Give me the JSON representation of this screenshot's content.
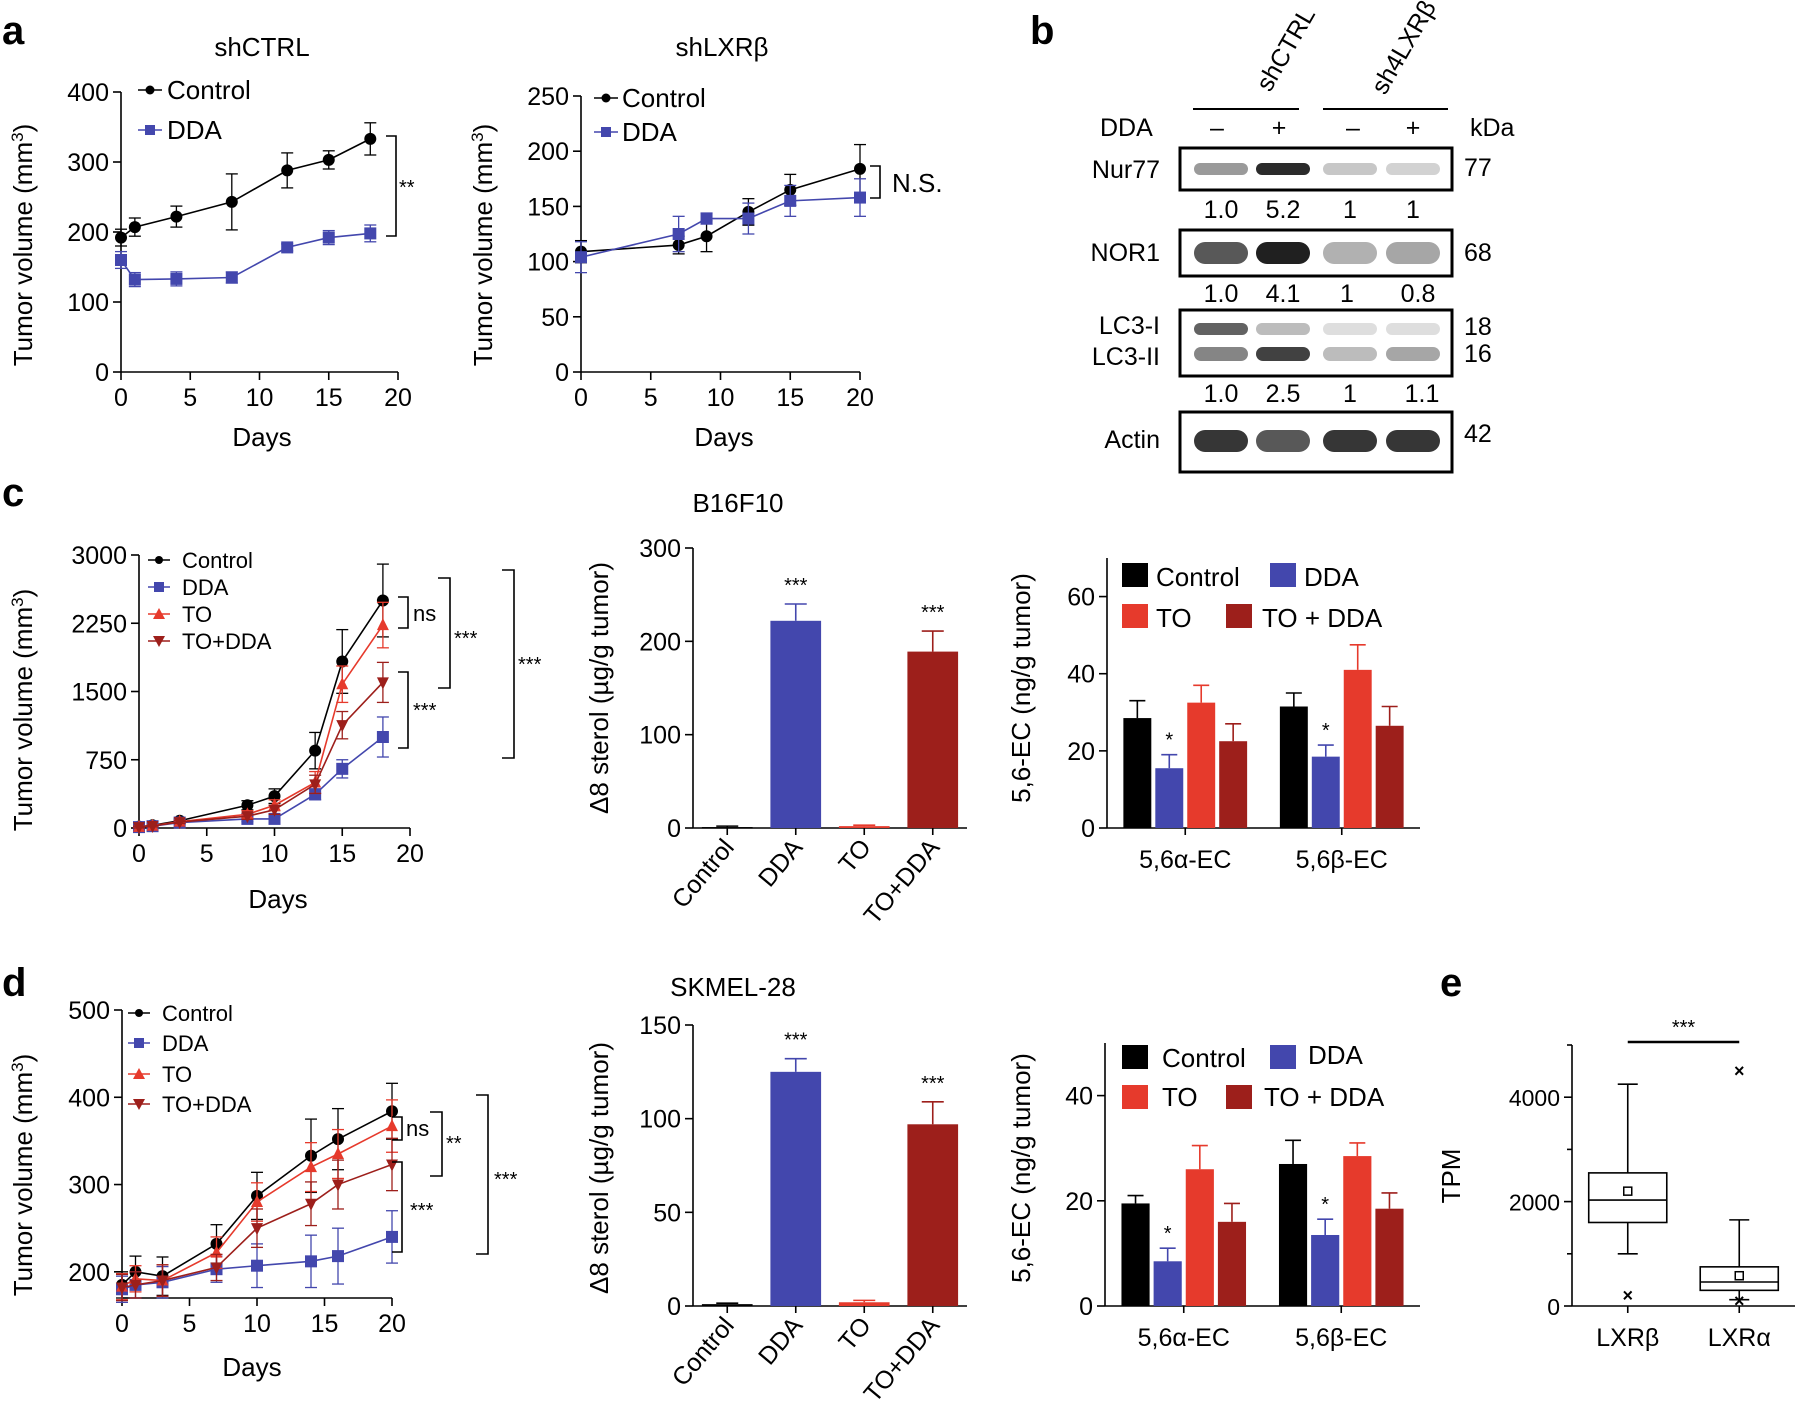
{
  "panel_labels": {
    "a": "a",
    "b": "b",
    "c": "c",
    "d": "d",
    "e": "e"
  },
  "colors": {
    "control": "#000000",
    "dda": "#4347ad",
    "to": "#e63a2c",
    "todda": "#9d1f1b",
    "band": "#202020"
  },
  "chart_data": [
    {
      "id": "a1",
      "type": "line",
      "title": "shCTRL",
      "xlabel": "Days",
      "ylabel": "Tumor volume (mm3)",
      "xlim": [
        0,
        20
      ],
      "ylim": [
        0,
        400
      ],
      "xticks": [
        0,
        5,
        10,
        15,
        20
      ],
      "yticks": [
        0,
        100,
        200,
        300,
        400
      ],
      "series": [
        {
          "name": "Control",
          "color": "#000000",
          "marker": "circle",
          "x": [
            0,
            1,
            4,
            8,
            12,
            15,
            18
          ],
          "y": [
            192,
            207,
            222,
            243,
            288,
            303,
            333
          ],
          "err": [
            12,
            13,
            15,
            40,
            25,
            13,
            23
          ]
        },
        {
          "name": "DDA",
          "color": "#4347ad",
          "marker": "square",
          "x": [
            0,
            1,
            4,
            8,
            12,
            15,
            18
          ],
          "y": [
            160,
            132,
            133,
            135,
            178,
            192,
            198
          ],
          "err": [
            12,
            10,
            10,
            8,
            5,
            10,
            12
          ]
        }
      ],
      "annotations": [
        {
          "text": "**",
          "pos": "between-ends"
        }
      ]
    },
    {
      "id": "a2",
      "type": "line",
      "title": "shLXRβ",
      "xlabel": "Days",
      "ylabel": "Tumor volume (mm3)",
      "xlim": [
        0,
        20
      ],
      "ylim": [
        0,
        250
      ],
      "xticks": [
        0,
        5,
        10,
        15,
        20
      ],
      "yticks": [
        0,
        50,
        100,
        150,
        200,
        250
      ],
      "series": [
        {
          "name": "Control",
          "color": "#000000",
          "marker": "circle",
          "x": [
            0,
            7,
            9,
            12,
            15,
            20
          ],
          "y": [
            109,
            115,
            123,
            145,
            165,
            184
          ],
          "err": [
            10,
            8,
            14,
            12,
            14,
            22
          ]
        },
        {
          "name": "DDA",
          "color": "#4347ad",
          "marker": "square",
          "x": [
            0,
            7,
            9,
            12,
            15,
            20
          ],
          "y": [
            104,
            125,
            139,
            139,
            155,
            158
          ],
          "err": [
            14,
            16,
            5,
            14,
            14,
            17
          ]
        }
      ],
      "annotations": [
        {
          "text": "N.S.",
          "pos": "between-ends"
        }
      ]
    },
    {
      "id": "c1",
      "type": "line",
      "xlabel": "Days",
      "ylabel": "Tumor volume (mm3)",
      "xlim": [
        0,
        20
      ],
      "ylim": [
        0,
        3000
      ],
      "xticks": [
        0,
        5,
        10,
        15,
        20
      ],
      "yticks": [
        0,
        750,
        1500,
        2250,
        3000
      ],
      "series": [
        {
          "name": "Control",
          "color": "#000000",
          "marker": "circle",
          "x": [
            0,
            1,
            3,
            8,
            10,
            13,
            15,
            18
          ],
          "y": [
            15,
            30,
            80,
            250,
            350,
            850,
            1830,
            2500
          ],
          "err": [
            10,
            10,
            20,
            50,
            80,
            200,
            350,
            400
          ]
        },
        {
          "name": "DDA",
          "color": "#4347ad",
          "marker": "square",
          "x": [
            0,
            1,
            3,
            8,
            10,
            13,
            15,
            18
          ],
          "y": [
            10,
            20,
            60,
            100,
            100,
            370,
            650,
            1000
          ],
          "err": [
            10,
            10,
            15,
            30,
            30,
            60,
            100,
            220
          ]
        },
        {
          "name": "TO",
          "color": "#e63a2c",
          "marker": "triangle-up",
          "x": [
            0,
            1,
            3,
            8,
            10,
            13,
            15,
            18
          ],
          "y": [
            12,
            25,
            70,
            150,
            250,
            500,
            1580,
            2230
          ],
          "err": [
            10,
            10,
            15,
            40,
            60,
            120,
            200,
            250
          ]
        },
        {
          "name": "TO+DDA",
          "color": "#9d1f1b",
          "marker": "triangle-down",
          "x": [
            0,
            1,
            3,
            8,
            10,
            13,
            15,
            18
          ],
          "y": [
            10,
            22,
            65,
            130,
            200,
            480,
            1130,
            1600
          ],
          "err": [
            10,
            10,
            15,
            35,
            50,
            100,
            150,
            220
          ]
        }
      ],
      "annotations": [
        {
          "text": "ns"
        },
        {
          "text": "***"
        },
        {
          "text": "***"
        },
        {
          "text": "***"
        }
      ]
    },
    {
      "id": "c2",
      "type": "bar",
      "title": "B16F10",
      "ylabel": "Δ8 sterol (µg/g tumor)",
      "categories": [
        "Control",
        "DDA",
        "TO",
        "TO+DDA"
      ],
      "values": [
        1,
        222,
        2,
        189
      ],
      "err": [
        1,
        18,
        1,
        22
      ],
      "colors": [
        "#000000",
        "#4347ad",
        "#e63a2c",
        "#9d1f1b"
      ],
      "ylim": [
        0,
        300
      ],
      "yticks": [
        0,
        100,
        200,
        300
      ],
      "annotations": [
        {
          "category": "DDA",
          "text": "***"
        },
        {
          "category": "TO+DDA",
          "text": "***"
        }
      ]
    },
    {
      "id": "c3",
      "type": "bar",
      "ylabel": "5,6-EC (ng/g tumor)",
      "categories": [
        "5,6α-EC",
        "5,6β-EC"
      ],
      "ylim": [
        0,
        70
      ],
      "yticks": [
        0,
        20,
        40,
        60
      ],
      "series": [
        {
          "name": "Control",
          "color": "#000000",
          "values": [
            28.5,
            31.5
          ],
          "err": [
            4.5,
            3.5
          ]
        },
        {
          "name": "DDA",
          "color": "#4347ad",
          "values": [
            15.5,
            18.5
          ],
          "err": [
            3.5,
            3
          ]
        },
        {
          "name": "TO",
          "color": "#e63a2c",
          "values": [
            32.5,
            41
          ],
          "err": [
            4.5,
            6.5
          ]
        },
        {
          "name": "TO + DDA",
          "color": "#9d1f1b",
          "values": [
            22.5,
            26.5
          ],
          "err": [
            4.5,
            5
          ]
        }
      ],
      "annotations": [
        {
          "category": "5,6α-EC",
          "series": "DDA",
          "text": "*"
        },
        {
          "category": "5,6β-EC",
          "series": "DDA",
          "text": "*"
        }
      ]
    },
    {
      "id": "d1",
      "type": "line",
      "xlabel": "Days",
      "ylabel": "Tumor volume (mm3)",
      "xlim": [
        0,
        20
      ],
      "ylim": [
        170,
        500
      ],
      "xticks": [
        0,
        5,
        10,
        15,
        20
      ],
      "yticks": [
        200,
        300,
        400,
        500
      ],
      "series": [
        {
          "name": "Control",
          "color": "#000000",
          "marker": "circle",
          "x": [
            0,
            1,
            3,
            7,
            10,
            14,
            16,
            20
          ],
          "y": [
            185,
            200,
            195,
            232,
            287,
            333,
            352,
            384
          ],
          "err": [
            15,
            18,
            22,
            22,
            27,
            42,
            35,
            32
          ]
        },
        {
          "name": "DDA",
          "color": "#4347ad",
          "marker": "square",
          "x": [
            0,
            1,
            3,
            7,
            10,
            14,
            16,
            20
          ],
          "y": [
            180,
            185,
            188,
            203,
            207,
            212,
            218,
            240
          ],
          "err": [
            15,
            15,
            18,
            15,
            25,
            30,
            32,
            30
          ]
        },
        {
          "name": "TO",
          "color": "#e63a2c",
          "marker": "triangle-up",
          "x": [
            0,
            1,
            3,
            7,
            10,
            14,
            16,
            20
          ],
          "y": [
            183,
            192,
            190,
            222,
            280,
            320,
            335,
            367
          ],
          "err": [
            15,
            15,
            18,
            18,
            22,
            28,
            28,
            30
          ]
        },
        {
          "name": "TO+DDA",
          "color": "#9d1f1b",
          "marker": "triangle-down",
          "x": [
            0,
            1,
            3,
            7,
            10,
            14,
            16,
            20
          ],
          "y": [
            182,
            185,
            190,
            205,
            250,
            278,
            300,
            323
          ],
          "err": [
            15,
            15,
            18,
            15,
            22,
            25,
            28,
            30
          ]
        }
      ],
      "annotations": [
        {
          "text": "ns"
        },
        {
          "text": "**"
        },
        {
          "text": "***"
        },
        {
          "text": "***"
        }
      ]
    },
    {
      "id": "d2",
      "type": "bar",
      "title": "SKMEL-28",
      "ylabel": "Δ8 sterol (µg/g tumor)",
      "categories": [
        "Control",
        "DDA",
        "TO",
        "TO+DDA"
      ],
      "values": [
        1,
        125,
        2,
        97
      ],
      "err": [
        0.5,
        7,
        1,
        12
      ],
      "colors": [
        "#000000",
        "#4347ad",
        "#e63a2c",
        "#9d1f1b"
      ],
      "ylim": [
        0,
        150
      ],
      "yticks": [
        0,
        50,
        100,
        150
      ],
      "annotations": [
        {
          "category": "DDA",
          "text": "***"
        },
        {
          "category": "TO+DDA",
          "text": "***"
        }
      ]
    },
    {
      "id": "d3",
      "type": "bar",
      "ylabel": "5,6-EC (ng/g tumor)",
      "categories": [
        "5,6α-EC",
        "5,6β-EC"
      ],
      "ylim": [
        0,
        50
      ],
      "yticks": [
        0,
        20,
        40
      ],
      "series": [
        {
          "name": "Control",
          "color": "#000000",
          "values": [
            19.5,
            27
          ],
          "err": [
            1.5,
            4.5
          ]
        },
        {
          "name": "DDA",
          "color": "#4347ad",
          "values": [
            8.5,
            13.5
          ],
          "err": [
            2.5,
            3
          ]
        },
        {
          "name": "TO",
          "color": "#e63a2c",
          "values": [
            26,
            28.5
          ],
          "err": [
            4.5,
            2.5
          ]
        },
        {
          "name": "TO + DDA",
          "color": "#9d1f1b",
          "values": [
            16,
            18.5
          ],
          "err": [
            3.5,
            3
          ]
        }
      ],
      "annotations": [
        {
          "category": "5,6α-EC",
          "series": "DDA",
          "text": "*"
        },
        {
          "category": "5,6β-EC",
          "series": "DDA",
          "text": "*"
        }
      ]
    },
    {
      "id": "e",
      "type": "box",
      "ylabel": "TPM",
      "categories": [
        "LXRβ",
        "LXRα"
      ],
      "ylim": [
        0,
        5000
      ],
      "yticks": [
        0,
        2000,
        4000
      ],
      "boxes": [
        {
          "name": "LXRβ",
          "whisker_low": 1000,
          "q1": 1600,
          "median": 2030,
          "q3": 2550,
          "whisker_high": 4250,
          "mean": 2200,
          "outliers": [
            200
          ]
        },
        {
          "name": "LXRα",
          "whisker_low": 120,
          "q1": 300,
          "median": 460,
          "q3": 750,
          "whisker_high": 1650,
          "mean": 580,
          "outliers": [
            4500,
            100
          ]
        }
      ],
      "annotations": [
        {
          "text": "***"
        }
      ]
    }
  ],
  "western_blot": {
    "groups": [
      "shCTRL",
      "sh4LXRβ"
    ],
    "treatment_label": "DDA",
    "treatment_signs": [
      "–",
      "+",
      "–",
      "+"
    ],
    "kda_label": "kDa",
    "rows": [
      {
        "labels": [
          "Nur77"
        ],
        "kda": [
          "77"
        ],
        "quant": [
          "1.0",
          "5.2",
          "1",
          "1"
        ],
        "bands": [
          [
            0.45,
            0.95,
            0.25,
            0.2
          ]
        ]
      },
      {
        "labels": [
          "NOR1"
        ],
        "kda": [
          "68"
        ],
        "quant": [
          "1.0",
          "4.1",
          "1",
          "0.8"
        ],
        "bands": [
          [
            0.75,
            1.0,
            0.35,
            0.4
          ]
        ]
      },
      {
        "labels": [
          "LC3-I",
          "LC3-II"
        ],
        "kda": [
          "18",
          "16"
        ],
        "quant": [
          "1.0",
          "2.5",
          "1",
          "1.1"
        ],
        "bands": [
          [
            0.7,
            0.3,
            0.15,
            0.15
          ],
          [
            0.55,
            0.85,
            0.3,
            0.4
          ]
        ]
      },
      {
        "labels": [
          "Actin"
        ],
        "kda": [
          "42"
        ],
        "quant": null,
        "bands": [
          [
            0.9,
            0.75,
            0.9,
            0.9
          ]
        ]
      }
    ]
  }
}
